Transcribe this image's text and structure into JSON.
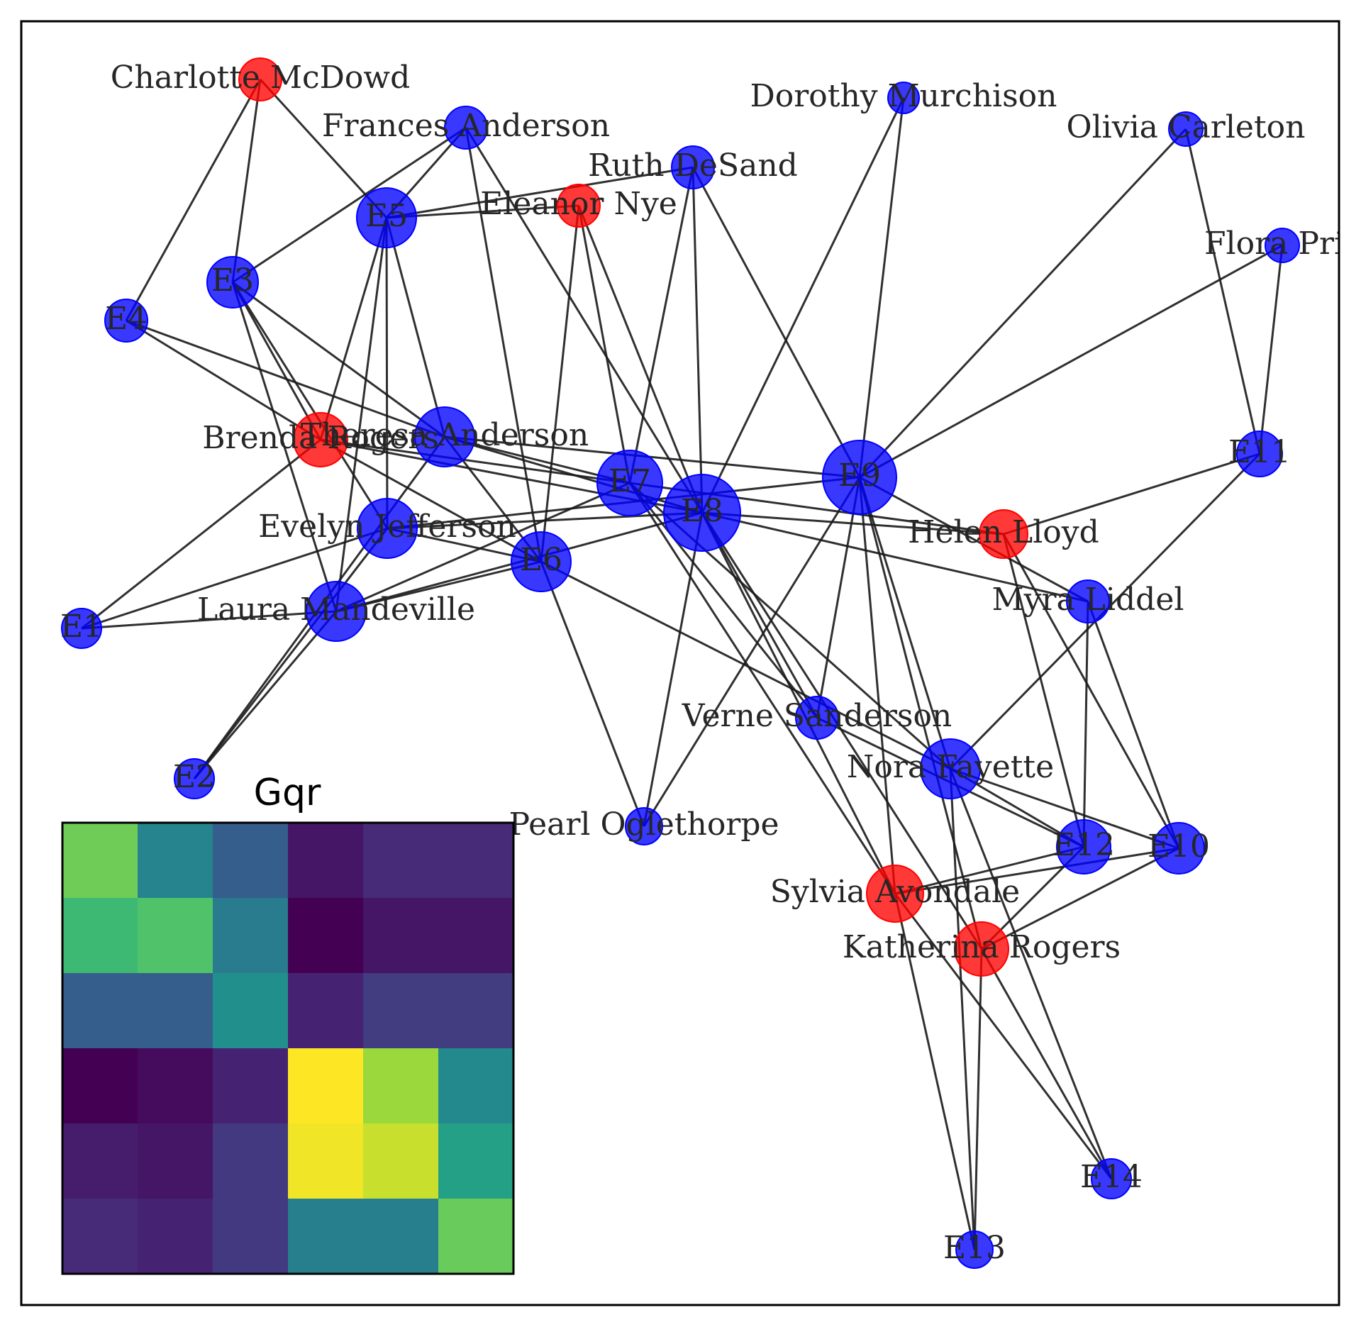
{
  "colors": {
    "person_node": "#ff0000",
    "event_node": "#0000ff",
    "edge": "#1a1a1a",
    "frame": "#000000"
  },
  "nodes": [
    {
      "id": "Charlotte McDowd",
      "type": "person"
    },
    {
      "id": "Frances Anderson",
      "type": "event"
    },
    {
      "id": "Dorothy Murchison",
      "type": "event"
    },
    {
      "id": "Olivia Carleton",
      "type": "event"
    },
    {
      "id": "Ruth DeSand",
      "type": "event"
    },
    {
      "id": "Eleanor Nye",
      "type": "person"
    },
    {
      "id": "E5",
      "type": "event"
    },
    {
      "id": "E3",
      "type": "event"
    },
    {
      "id": "E4",
      "type": "event"
    },
    {
      "id": "Flora Price",
      "type": "event"
    },
    {
      "id": "Brenda Rogers",
      "type": "person"
    },
    {
      "id": "Theresa Anderson",
      "type": "event"
    },
    {
      "id": "E7",
      "type": "event"
    },
    {
      "id": "E8",
      "type": "event"
    },
    {
      "id": "E9",
      "type": "event"
    },
    {
      "id": "E11",
      "type": "event"
    },
    {
      "id": "Evelyn Jefferson",
      "type": "event"
    },
    {
      "id": "E6",
      "type": "event"
    },
    {
      "id": "Helen Lloyd",
      "type": "person"
    },
    {
      "id": "E1",
      "type": "event"
    },
    {
      "id": "Laura Mandeville",
      "type": "event"
    },
    {
      "id": "Myra Liddel",
      "type": "event"
    },
    {
      "id": "Verne Sanderson",
      "type": "event"
    },
    {
      "id": "Nora Fayette",
      "type": "event"
    },
    {
      "id": "E2",
      "type": "event"
    },
    {
      "id": "Pearl Oglethorpe",
      "type": "event"
    },
    {
      "id": "E12",
      "type": "event"
    },
    {
      "id": "E10",
      "type": "event"
    },
    {
      "id": "Sylvia Avondale",
      "type": "person"
    },
    {
      "id": "Katherina Rogers",
      "type": "person"
    },
    {
      "id": "E14",
      "type": "event"
    },
    {
      "id": "E13",
      "type": "event"
    }
  ],
  "edges": [
    [
      "Charlotte McDowd",
      "E5"
    ],
    [
      "Charlotte McDowd",
      "E3"
    ],
    [
      "Charlotte McDowd",
      "E4"
    ],
    [
      "Frances Anderson",
      "E5"
    ],
    [
      "Frances Anderson",
      "E3"
    ],
    [
      "Frances Anderson",
      "E6"
    ],
    [
      "Frances Anderson",
      "E8"
    ],
    [
      "Ruth DeSand",
      "E5"
    ],
    [
      "Ruth DeSand",
      "E7"
    ],
    [
      "Ruth DeSand",
      "E8"
    ],
    [
      "Ruth DeSand",
      "E9"
    ],
    [
      "Eleanor Nye",
      "E5"
    ],
    [
      "Eleanor Nye",
      "E6"
    ],
    [
      "Eleanor Nye",
      "E7"
    ],
    [
      "Eleanor Nye",
      "E8"
    ],
    [
      "Dorothy Murchison",
      "E8"
    ],
    [
      "Dorothy Murchison",
      "E9"
    ],
    [
      "Olivia Carleton",
      "E9"
    ],
    [
      "Olivia Carleton",
      "E11"
    ],
    [
      "Flora Price",
      "E9"
    ],
    [
      "Flora Price",
      "E11"
    ],
    [
      "Brenda Rogers",
      "E1"
    ],
    [
      "Brenda Rogers",
      "E3"
    ],
    [
      "Brenda Rogers",
      "E4"
    ],
    [
      "Brenda Rogers",
      "E5"
    ],
    [
      "Brenda Rogers",
      "E6"
    ],
    [
      "Brenda Rogers",
      "E7"
    ],
    [
      "Brenda Rogers",
      "E8"
    ],
    [
      "Theresa Anderson",
      "E3"
    ],
    [
      "Theresa Anderson",
      "E4"
    ],
    [
      "Theresa Anderson",
      "E5"
    ],
    [
      "Theresa Anderson",
      "E6"
    ],
    [
      "Theresa Anderson",
      "E7"
    ],
    [
      "Theresa Anderson",
      "E8"
    ],
    [
      "Theresa Anderson",
      "E9"
    ],
    [
      "Theresa Anderson",
      "E2"
    ],
    [
      "Evelyn Jefferson",
      "E1"
    ],
    [
      "Evelyn Jefferson",
      "E2"
    ],
    [
      "Evelyn Jefferson",
      "E3"
    ],
    [
      "Evelyn Jefferson",
      "E5"
    ],
    [
      "Evelyn Jefferson",
      "E6"
    ],
    [
      "Evelyn Jefferson",
      "E8"
    ],
    [
      "Evelyn Jefferson",
      "E9"
    ],
    [
      "Laura Mandeville",
      "E1"
    ],
    [
      "Laura Mandeville",
      "E2"
    ],
    [
      "Laura Mandeville",
      "E3"
    ],
    [
      "Laura Mandeville",
      "E5"
    ],
    [
      "Laura Mandeville",
      "E6"
    ],
    [
      "Laura Mandeville",
      "E7"
    ],
    [
      "Laura Mandeville",
      "E8"
    ],
    [
      "Helen Lloyd",
      "E7"
    ],
    [
      "Helen Lloyd",
      "E8"
    ],
    [
      "Helen Lloyd",
      "E10"
    ],
    [
      "Helen Lloyd",
      "E11"
    ],
    [
      "Helen Lloyd",
      "E12"
    ],
    [
      "Myra Liddel",
      "E8"
    ],
    [
      "Myra Liddel",
      "E9"
    ],
    [
      "Myra Liddel",
      "E10"
    ],
    [
      "Myra Liddel",
      "E12"
    ],
    [
      "Verne Sanderson",
      "E7"
    ],
    [
      "Verne Sanderson",
      "E8"
    ],
    [
      "Verne Sanderson",
      "E9"
    ],
    [
      "Verne Sanderson",
      "E12"
    ],
    [
      "Nora Fayette",
      "E6"
    ],
    [
      "Nora Fayette",
      "E7"
    ],
    [
      "Nora Fayette",
      "E9"
    ],
    [
      "Nora Fayette",
      "E10"
    ],
    [
      "Nora Fayette",
      "E11"
    ],
    [
      "Nora Fayette",
      "E12"
    ],
    [
      "Nora Fayette",
      "E13"
    ],
    [
      "Nora Fayette",
      "E14"
    ],
    [
      "Pearl Oglethorpe",
      "E6"
    ],
    [
      "Pearl Oglethorpe",
      "E8"
    ],
    [
      "Pearl Oglethorpe",
      "E9"
    ],
    [
      "Sylvia Avondale",
      "E7"
    ],
    [
      "Sylvia Avondale",
      "E8"
    ],
    [
      "Sylvia Avondale",
      "E9"
    ],
    [
      "Sylvia Avondale",
      "E10"
    ],
    [
      "Sylvia Avondale",
      "E12"
    ],
    [
      "Sylvia Avondale",
      "E13"
    ],
    [
      "Sylvia Avondale",
      "E14"
    ],
    [
      "Katherina Rogers",
      "E8"
    ],
    [
      "Katherina Rogers",
      "E9"
    ],
    [
      "Katherina Rogers",
      "E10"
    ],
    [
      "Katherina Rogers",
      "E12"
    ],
    [
      "Katherina Rogers",
      "E13"
    ],
    [
      "Katherina Rogers",
      "E14"
    ]
  ],
  "inset": {
    "title": "Gqr",
    "colormap": "viridis",
    "matrix": [
      [
        0.78,
        0.45,
        0.3,
        0.06,
        0.12,
        0.12
      ],
      [
        0.68,
        0.72,
        0.42,
        0.0,
        0.06,
        0.06
      ],
      [
        0.3,
        0.3,
        0.5,
        0.1,
        0.18,
        0.18
      ],
      [
        0.0,
        0.03,
        0.1,
        1.0,
        0.85,
        0.47
      ],
      [
        0.08,
        0.06,
        0.17,
        0.98,
        0.92,
        0.57
      ],
      [
        0.12,
        0.1,
        0.17,
        0.43,
        0.43,
        0.77
      ]
    ]
  }
}
